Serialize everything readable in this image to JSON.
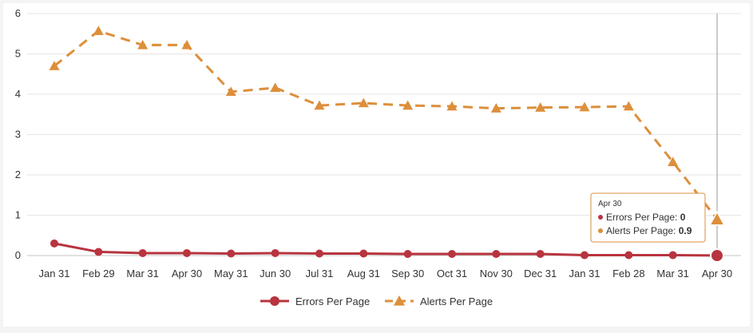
{
  "chart_data": {
    "type": "line",
    "categories": [
      "Jan 31",
      "Feb 29",
      "Mar 31",
      "Apr 30",
      "May 31",
      "Jun 30",
      "Jul 31",
      "Aug 31",
      "Sep 30",
      "Oct 31",
      "Nov 30",
      "Dec 31",
      "Jan 31",
      "Feb 28",
      "Mar 31",
      "Apr 30"
    ],
    "ylim": [
      0,
      6
    ],
    "yticks": [
      0,
      1,
      2,
      3,
      4,
      5,
      6
    ],
    "grid": true,
    "legend_position": "bottom",
    "series": [
      {
        "name": "Errors Per Page",
        "color": "#b8343f",
        "marker": "circle",
        "line_style": "solid",
        "values": [
          0.3,
          0.09,
          0.06,
          0.06,
          0.05,
          0.06,
          0.05,
          0.05,
          0.04,
          0.04,
          0.04,
          0.04,
          0.01,
          0.01,
          0.01,
          0
        ]
      },
      {
        "name": "Alerts Per Page",
        "color": "#dd8f3b",
        "marker": "triangle",
        "line_style": "dashed",
        "values": [
          4.7,
          5.57,
          5.22,
          5.22,
          4.06,
          4.16,
          3.72,
          3.78,
          3.72,
          3.7,
          3.65,
          3.67,
          3.68,
          3.7,
          2.32,
          0.9
        ]
      }
    ],
    "tooltip": {
      "header": "Apr 30",
      "rows": [
        {
          "label": "Errors Per Page: ",
          "value": "0",
          "color": "#b8343f"
        },
        {
          "label": "Alerts Per Page: ",
          "value": "0.9",
          "color": "#dd8f3b"
        }
      ]
    }
  }
}
